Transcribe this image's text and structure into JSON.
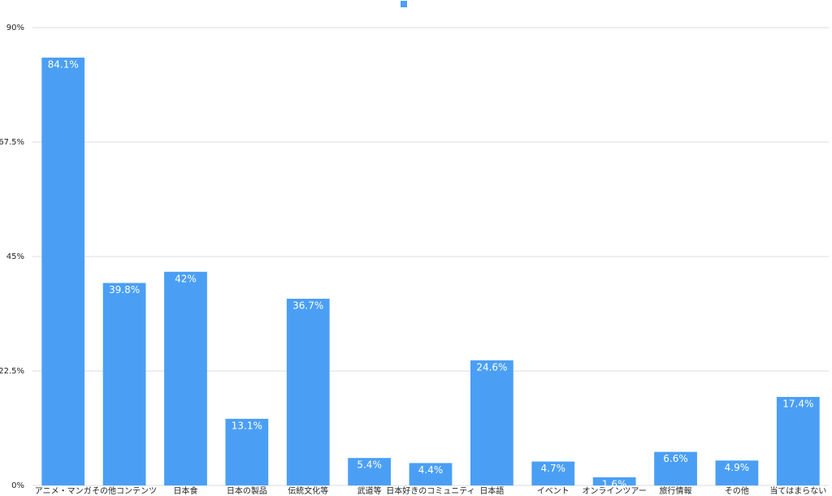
{
  "chart_data": {
    "type": "bar",
    "categories": [
      "アニメ・マンガ",
      "その他コンテンツ",
      "日本食",
      "日本の製品",
      "伝統文化等",
      "武道等",
      "日本好きのコミュニティ",
      "日本語",
      "イベント",
      "オンラインツアー",
      "旅行情報",
      "その他",
      "当てはまらない"
    ],
    "values": [
      84.1,
      39.8,
      42,
      13.1,
      36.7,
      5.4,
      4.4,
      24.6,
      4.7,
      1.6,
      6.6,
      4.9,
      17.4
    ],
    "value_labels": [
      "84.1%",
      "39.8%",
      "42%",
      "13.1%",
      "36.7%",
      "5.4%",
      "4.4%",
      "24.6%",
      "4.7%",
      "1.6%",
      "6.6%",
      "4.9%",
      "17.4%"
    ],
    "color": "#4a9ff5",
    "ylim": [
      0,
      90
    ],
    "yticks": [
      {
        "value": 0,
        "label": "0%"
      },
      {
        "value": 22.5,
        "label": "22.5%"
      },
      {
        "value": 45,
        "label": "45%"
      },
      {
        "value": 67.5,
        "label": "67.5%"
      },
      {
        "value": 90,
        "label": "90%"
      }
    ],
    "grid": true
  }
}
